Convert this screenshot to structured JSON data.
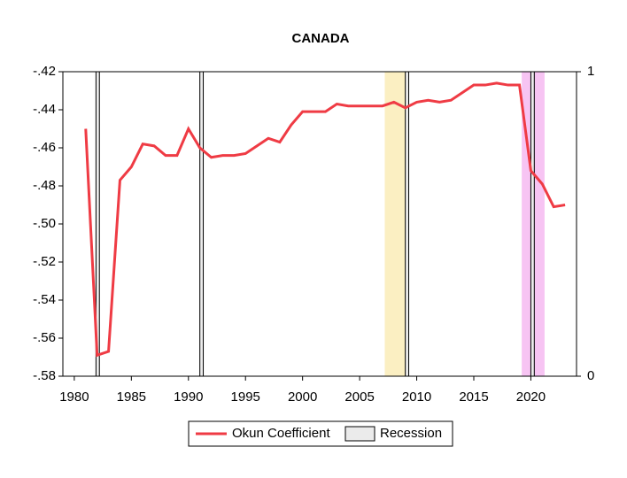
{
  "chart_data": {
    "type": "line",
    "title": "CANADA",
    "x": [
      1981,
      1982,
      1983,
      1984,
      1985,
      1986,
      1987,
      1988,
      1989,
      1990,
      1991,
      1992,
      1993,
      1994,
      1995,
      1996,
      1997,
      1998,
      1999,
      2000,
      2001,
      2002,
      2003,
      2004,
      2005,
      2006,
      2007,
      2008,
      2009,
      2010,
      2011,
      2012,
      2013,
      2014,
      2015,
      2016,
      2017,
      2018,
      2019,
      2020,
      2021,
      2022,
      2023
    ],
    "series": [
      {
        "name": "Okun Coefficient",
        "color": "#ef3b44",
        "values": [
          -0.45,
          -0.569,
          -0.567,
          -0.477,
          -0.47,
          -0.458,
          -0.459,
          -0.464,
          -0.464,
          -0.45,
          -0.46,
          -0.465,
          -0.464,
          -0.464,
          -0.463,
          -0.459,
          -0.455,
          -0.457,
          -0.448,
          -0.441,
          -0.441,
          -0.441,
          -0.437,
          -0.438,
          -0.438,
          -0.438,
          -0.438,
          -0.436,
          -0.439,
          -0.436,
          -0.435,
          -0.436,
          -0.435,
          -0.431,
          -0.427,
          -0.427,
          -0.426,
          -0.427,
          -0.427,
          -0.472,
          -0.479,
          -0.491,
          -0.49
        ]
      }
    ],
    "recession": {
      "name": "Recession",
      "color": "#ebebeb",
      "axis": "y2",
      "ranges": [
        [
          1981.9,
          1982.2
        ],
        [
          1991.0,
          1991.3
        ],
        [
          2009.0,
          2009.3
        ],
        [
          2020.0,
          2020.3
        ]
      ]
    },
    "shaded": [
      {
        "range": [
          2007.2,
          2009.0
        ],
        "color": "#fbefc2"
      },
      {
        "range": [
          2019.2,
          2021.2
        ],
        "color": "#f7c4f3"
      }
    ],
    "xlim": [
      1979,
      2024
    ],
    "xticks": [
      1980,
      1985,
      1990,
      1995,
      2000,
      2005,
      2010,
      2015,
      2020
    ],
    "ylim": [
      -0.58,
      -0.42
    ],
    "yticks": [
      {
        "value": -0.42,
        "label": "-.42"
      },
      {
        "value": -0.44,
        "label": "-.44"
      },
      {
        "value": -0.46,
        "label": "-.46"
      },
      {
        "value": -0.48,
        "label": "-.48"
      },
      {
        "value": -0.5,
        "label": "-.50"
      },
      {
        "value": -0.52,
        "label": "-.52"
      },
      {
        "value": -0.54,
        "label": "-.54"
      },
      {
        "value": -0.56,
        "label": "-.56"
      },
      {
        "value": -0.58,
        "label": "-.58"
      }
    ],
    "y2lim": [
      0,
      1
    ],
    "y2ticks": [
      0,
      1
    ]
  }
}
